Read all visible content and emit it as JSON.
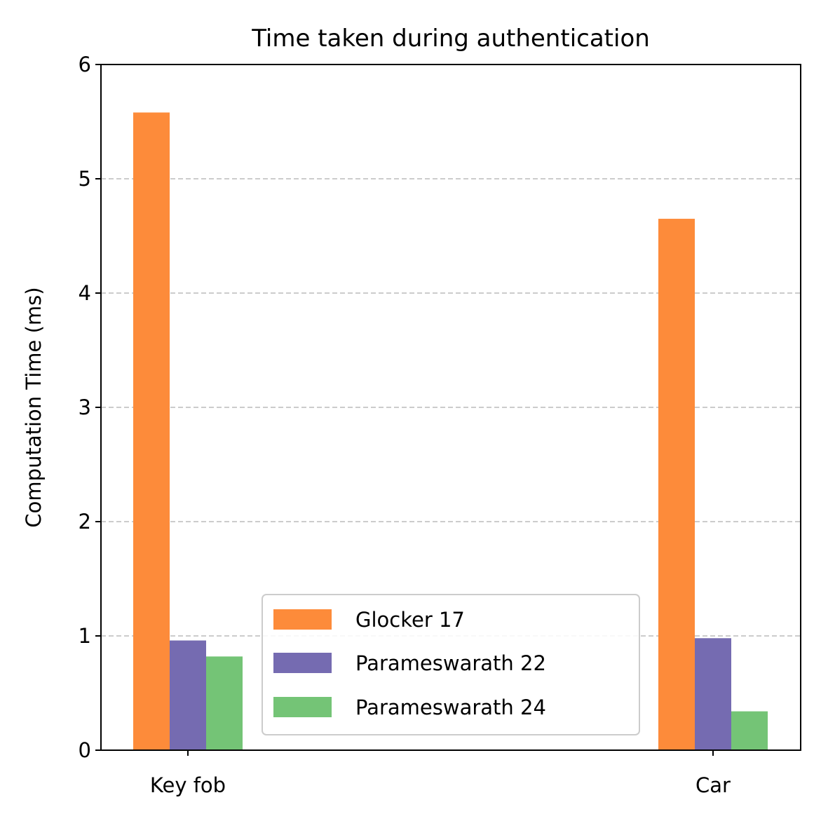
{
  "chart_data": {
    "type": "bar",
    "title": "Time taken during authentication",
    "xlabel": "",
    "ylabel": "Computation Time (ms)",
    "ylim": [
      0,
      6
    ],
    "yticks": [
      "0",
      "1",
      "2",
      "3",
      "4",
      "5",
      "6"
    ],
    "categories": [
      "Key fob",
      "Car"
    ],
    "series": [
      {
        "name": "Glocker 17",
        "values": [
          5.58,
          4.65
        ],
        "color": "#fd8b3a"
      },
      {
        "name": "Parameswarath 22",
        "values": [
          0.96,
          0.98
        ],
        "color": "#756bb1"
      },
      {
        "name": "Parameswarath 24",
        "values": [
          0.82,
          0.34
        ],
        "color": "#74c476"
      }
    ],
    "grid": {
      "y": true,
      "x": false,
      "style": "dashed",
      "color": "#cccccc"
    },
    "legend_position": "bottom-center"
  }
}
